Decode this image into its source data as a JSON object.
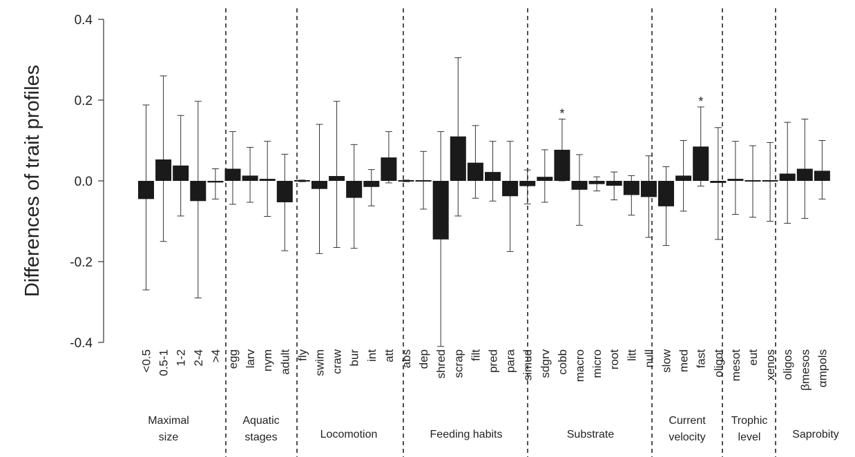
{
  "chart_data": {
    "type": "bar",
    "ylabel": "Differences of trait profiles",
    "ylim": [
      -0.4,
      0.4
    ],
    "yticks": [
      -0.4,
      -0.2,
      0.0,
      0.2,
      0.4
    ],
    "ytick_labels": [
      "-0.4",
      "-0.2",
      "0.0",
      "0.2",
      "0.4"
    ],
    "grid": false,
    "bar_color": "#1a1a1a",
    "groups": [
      {
        "label": [
          "Maximal",
          "size"
        ],
        "categories": [
          "<0.5",
          "0.5-1",
          "1-2",
          "2-4",
          ">4"
        ]
      },
      {
        "label": [
          "Aquatic",
          "stages"
        ],
        "categories": [
          "egg",
          "larv",
          "nym",
          "adult"
        ]
      },
      {
        "label": [
          "Locomotion"
        ],
        "categories": [
          "fly",
          "swim",
          "craw",
          "bur",
          "int",
          "att"
        ]
      },
      {
        "label": [
          "Feeding habits"
        ],
        "categories": [
          "abs",
          "dep",
          "shred",
          "scrap",
          "filt",
          "pred",
          "para"
        ]
      },
      {
        "label": [
          "Substrate"
        ],
        "categories": [
          "simud",
          "sdgrv",
          "cobb",
          "macro",
          "micro",
          "root",
          "litt"
        ]
      },
      {
        "label": [
          "Current",
          "velocity"
        ],
        "categories": [
          "null",
          "slow",
          "med",
          "fast"
        ]
      },
      {
        "label": [
          "Trophic",
          "level"
        ],
        "categories": [
          "oligot",
          "mesot",
          "eut"
        ]
      },
      {
        "label": [
          "Saprobity"
        ],
        "categories": [
          "xenos",
          "oligos",
          "βmesos",
          "αmpols"
        ]
      }
    ],
    "bars": [
      {
        "category": "<0.5",
        "value": -0.045,
        "err_low": -0.27,
        "err_high": 0.188,
        "significant": false
      },
      {
        "category": "0.5-1",
        "value": 0.053,
        "err_low": -0.15,
        "err_high": 0.26,
        "significant": false
      },
      {
        "category": "1-2",
        "value": 0.038,
        "err_low": -0.087,
        "err_high": 0.162,
        "significant": false
      },
      {
        "category": "2-4",
        "value": -0.05,
        "err_low": -0.29,
        "err_high": 0.197,
        "significant": false
      },
      {
        "category": ">4",
        "value": -0.004,
        "err_low": -0.045,
        "err_high": 0.03,
        "significant": false
      },
      {
        "category": "egg",
        "value": 0.03,
        "err_low": -0.058,
        "err_high": 0.122,
        "significant": false
      },
      {
        "category": "larv",
        "value": 0.013,
        "err_low": -0.053,
        "err_high": 0.083,
        "significant": false
      },
      {
        "category": "nym",
        "value": 0.005,
        "err_low": -0.088,
        "err_high": 0.098,
        "significant": false
      },
      {
        "category": "adult",
        "value": -0.053,
        "err_low": -0.173,
        "err_high": 0.066,
        "significant": false
      },
      {
        "category": "fly",
        "value": 0.0,
        "err_low": -0.002,
        "err_high": 0.002,
        "significant": false
      },
      {
        "category": "swim",
        "value": -0.02,
        "err_low": -0.18,
        "err_high": 0.14,
        "significant": false
      },
      {
        "category": "craw",
        "value": 0.012,
        "err_low": -0.165,
        "err_high": 0.197,
        "significant": false
      },
      {
        "category": "bur",
        "value": -0.042,
        "err_low": -0.167,
        "err_high": 0.09,
        "significant": false
      },
      {
        "category": "int",
        "value": -0.015,
        "err_low": -0.062,
        "err_high": 0.028,
        "significant": false
      },
      {
        "category": "att",
        "value": 0.058,
        "err_low": -0.005,
        "err_high": 0.122,
        "significant": false
      },
      {
        "category": "abs",
        "value": 0.0,
        "err_low": -0.002,
        "err_high": 0.002,
        "significant": false
      },
      {
        "category": "dep",
        "value": 0.002,
        "err_low": -0.07,
        "err_high": 0.073,
        "significant": false
      },
      {
        "category": "shred",
        "value": -0.145,
        "err_low": -0.41,
        "err_high": 0.122,
        "significant": false
      },
      {
        "category": "scrap",
        "value": 0.11,
        "err_low": -0.087,
        "err_high": 0.305,
        "significant": false
      },
      {
        "category": "filt",
        "value": 0.045,
        "err_low": -0.043,
        "err_high": 0.137,
        "significant": false
      },
      {
        "category": "pred",
        "value": 0.022,
        "err_low": -0.05,
        "err_high": 0.098,
        "significant": false
      },
      {
        "category": "para",
        "value": -0.038,
        "err_low": -0.175,
        "err_high": 0.098,
        "significant": false
      },
      {
        "category": "simud",
        "value": -0.013,
        "err_low": -0.057,
        "err_high": 0.027,
        "significant": false
      },
      {
        "category": "sdgrv",
        "value": 0.01,
        "err_low": -0.053,
        "err_high": 0.077,
        "significant": false
      },
      {
        "category": "cobb",
        "value": 0.077,
        "err_low": 0.0,
        "err_high": 0.153,
        "significant": true
      },
      {
        "category": "macro",
        "value": -0.022,
        "err_low": -0.11,
        "err_high": 0.065,
        "significant": false
      },
      {
        "category": "micro",
        "value": -0.008,
        "err_low": -0.025,
        "err_high": 0.01,
        "significant": false
      },
      {
        "category": "root",
        "value": -0.012,
        "err_low": -0.047,
        "err_high": 0.022,
        "significant": false
      },
      {
        "category": "litt",
        "value": -0.035,
        "err_low": -0.085,
        "err_high": 0.013,
        "significant": false
      },
      {
        "category": "null",
        "value": -0.04,
        "err_low": -0.14,
        "err_high": 0.062,
        "significant": false
      },
      {
        "category": "slow",
        "value": -0.063,
        "err_low": -0.16,
        "err_high": 0.035,
        "significant": false
      },
      {
        "category": "med",
        "value": 0.013,
        "err_low": -0.075,
        "err_high": 0.1,
        "significant": false
      },
      {
        "category": "fast",
        "value": 0.085,
        "err_low": -0.013,
        "err_high": 0.183,
        "significant": true
      },
      {
        "category": "oligot",
        "value": -0.005,
        "err_low": -0.145,
        "err_high": 0.132,
        "significant": false
      },
      {
        "category": "mesot",
        "value": 0.005,
        "err_low": -0.083,
        "err_high": 0.098,
        "significant": false
      },
      {
        "category": "eut",
        "value": -0.002,
        "err_low": -0.09,
        "err_high": 0.087,
        "significant": false
      },
      {
        "category": "xenos",
        "value": -0.002,
        "err_low": -0.1,
        "err_high": 0.095,
        "significant": false
      },
      {
        "category": "oligos",
        "value": 0.018,
        "err_low": -0.105,
        "err_high": 0.145,
        "significant": false
      },
      {
        "category": "βmesos",
        "value": 0.03,
        "err_low": -0.093,
        "err_high": 0.153,
        "significant": false
      },
      {
        "category": "αmpols",
        "value": 0.025,
        "err_low": -0.045,
        "err_high": 0.1,
        "significant": false
      }
    ],
    "significance_marker": "*"
  }
}
